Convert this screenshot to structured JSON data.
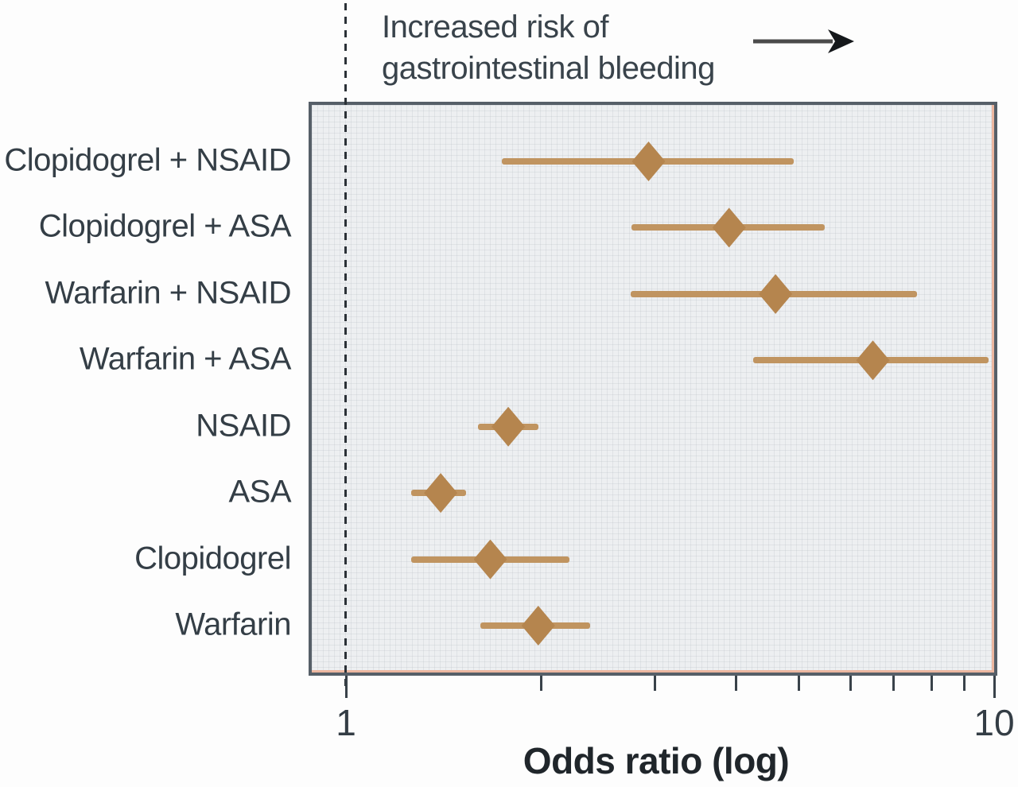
{
  "annotation": {
    "line1": "Increased risk of",
    "line2": "gastrointestinal bleeding"
  },
  "axis": {
    "xlabel": "Odds ratio (log)",
    "tick_label_min": "1",
    "tick_label_max": "10"
  },
  "chart_data": {
    "type": "scatter",
    "variant": "forest_plot",
    "orientation": "horizontal_rows",
    "x_scale": "log10",
    "xlabel": "Odds ratio (log)",
    "xlim": [
      0.88,
      10.05
    ],
    "x_ticks": [
      1,
      2,
      3,
      4,
      5,
      6,
      7,
      8,
      9,
      10
    ],
    "labeled_ticks": [
      1,
      10
    ],
    "reference_line_x": 1,
    "grid": "faint dotted texture",
    "legend": "none",
    "annotation": "Increased risk of gastrointestinal bleeding (arrow pointing right)",
    "rows": [
      {
        "label": "Clopidogrel + NSAID",
        "or": 2.93,
        "ci_low": 1.74,
        "ci_high": 4.9
      },
      {
        "label": "Clopidogrel + ASA",
        "or": 3.9,
        "ci_low": 2.76,
        "ci_high": 5.48
      },
      {
        "label": "Warfarin + NSAID",
        "or": 4.6,
        "ci_low": 2.75,
        "ci_high": 7.6
      },
      {
        "label": "Warfarin + ASA",
        "or": 6.5,
        "ci_low": 4.25,
        "ci_high": 9.8
      },
      {
        "label": "NSAID",
        "or": 1.78,
        "ci_low": 1.6,
        "ci_high": 1.98
      },
      {
        "label": "ASA",
        "or": 1.4,
        "ci_low": 1.26,
        "ci_high": 1.53
      },
      {
        "label": "Clopidogrel",
        "or": 1.67,
        "ci_low": 1.26,
        "ci_high": 2.21
      },
      {
        "label": "Warfarin",
        "or": 1.98,
        "ci_low": 1.61,
        "ci_high": 2.38
      }
    ],
    "colors": {
      "marker": "#b5854e",
      "ci_line": "#c09460",
      "reference_line": "#2b3137",
      "axis_ticks": "#39424a",
      "box_border": "#565f68",
      "box_inner_accent": "#ecb7a0",
      "plot_background": "#edeff1",
      "text": "#39434b",
      "arrow": "#1a1d20"
    }
  }
}
